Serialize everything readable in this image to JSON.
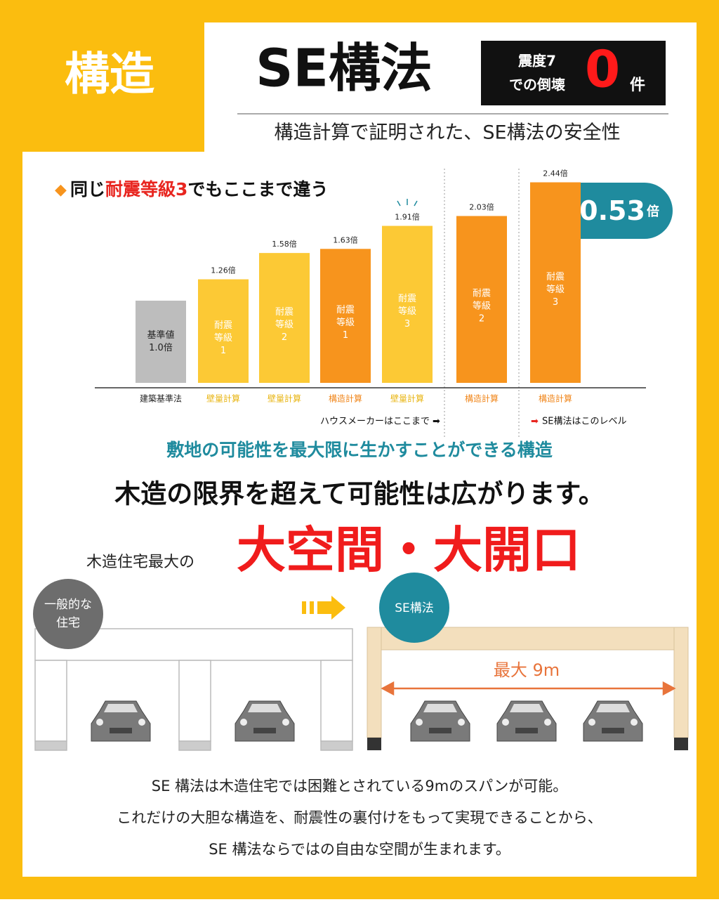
{
  "header": {
    "tag": "構造",
    "title": "SE構法",
    "badge": {
      "line1": "震度7",
      "line2": "での倒壊",
      "count": "0",
      "unit": "件"
    },
    "subtitle": "構造計算で証明された、SE構法の安全性"
  },
  "chart_data": {
    "type": "bar",
    "title": {
      "prefix": "同じ",
      "highlight": "耐震等級3",
      "suffix": "でもここまで違う"
    },
    "categories": [
      "建築基準法",
      "壁量計算",
      "壁量計算",
      "構造計算",
      "壁量計算",
      "構造計算",
      "構造計算"
    ],
    "values": [
      1.0,
      1.26,
      1.58,
      1.63,
      1.91,
      2.03,
      2.44
    ],
    "value_labels": [
      "1.0倍",
      "1.26倍",
      "1.58倍",
      "1.63倍",
      "1.91倍",
      "2.03倍",
      "2.44倍"
    ],
    "bar_labels": [
      [
        "基準値"
      ],
      [
        "耐震",
        "等級",
        "1"
      ],
      [
        "耐震",
        "等級",
        "2"
      ],
      [
        "耐震",
        "等級",
        "1"
      ],
      [
        "耐震",
        "等級",
        "3"
      ],
      [
        "耐震",
        "等級",
        "2"
      ],
      [
        "耐震",
        "等級",
        "3"
      ]
    ],
    "colors": [
      "#bdbdbd",
      "#fcc935",
      "#fcc935",
      "#f7941d",
      "#fcc935",
      "#f7941d",
      "#f7941d"
    ],
    "annotations": {
      "house_maker": "ハウスメーカーはここまで",
      "se": "SE構法はこのレベル",
      "difference": {
        "sign": "+",
        "value": "0.53",
        "unit": "倍"
      }
    }
  },
  "section": {
    "subheading": "敷地の可能性を最大限に生かすことができる構造",
    "headline": "木造の限界を超えて可能性は広がります。",
    "prefix": "木造住宅最大の",
    "highlight": "大空間・大開口",
    "diagram": {
      "normal": [
        "一般的な",
        "住宅"
      ],
      "se": "SE構法",
      "span": "最大 9m"
    },
    "footer": [
      "SE 構法は木造住宅では困難とされている9mのスパンが可能。",
      "これだけの大胆な構造を、耐震性の裏付けをもって実現できることから、",
      "SE 構法ならではの自由な空間が生まれます。"
    ]
  }
}
